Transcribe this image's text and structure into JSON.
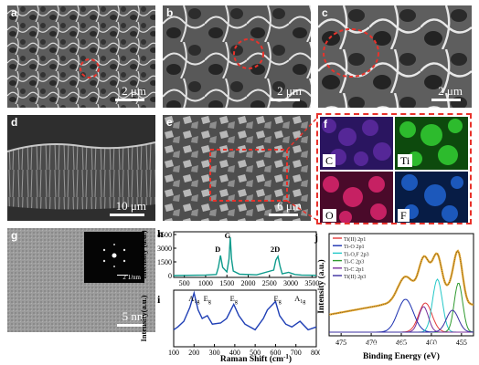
{
  "panels": {
    "a": {
      "letter": "a",
      "scale": "2 μm"
    },
    "b": {
      "letter": "b",
      "scale": "2 μm"
    },
    "c": {
      "letter": "c",
      "scale": "2 μm"
    },
    "d": {
      "letter": "d",
      "scale": "10 μm"
    },
    "e": {
      "letter": "e",
      "scale": "6 μm"
    },
    "f": {
      "letter": "f",
      "maps": [
        {
          "label": "C",
          "color": "#5a2a9e"
        },
        {
          "label": "Ti",
          "color": "#2fc22f"
        },
        {
          "label": "O",
          "color": "#d4246a"
        },
        {
          "label": "F",
          "color": "#1f5fc8"
        }
      ]
    },
    "g": {
      "letter": "g",
      "scale": "5 nm",
      "fft_scale": "2 1/nm"
    },
    "h": {
      "letter": "h"
    },
    "i": {
      "letter": "i"
    },
    "j": {
      "letter": "j"
    }
  },
  "colors": {
    "highlight": "#e8322b",
    "raman": "#0e9b8c",
    "raman_i": "#1f3fb5"
  },
  "chart_data": [
    {
      "type": "line",
      "panel": "h",
      "ylabel": "Intensity (a.u.)",
      "xlim": [
        250,
        3600
      ],
      "ylim": [
        -200,
        4800
      ],
      "xticks": [
        500,
        1000,
        1500,
        2000,
        2500,
        3000,
        3500
      ],
      "yticks": [
        0,
        1500,
        3000,
        4500
      ],
      "annotations": [
        {
          "text": "D",
          "x": 1350
        },
        {
          "text": "G",
          "x": 1580
        },
        {
          "text": "2D",
          "x": 2700
        }
      ],
      "series": [
        {
          "x": [
            250,
            600,
            1000,
            1250,
            1300,
            1350,
            1400,
            1500,
            1550,
            1580,
            1610,
            1650,
            1800,
            2200,
            2600,
            2650,
            2700,
            2750,
            2800,
            2950,
            3100,
            3250,
            3600
          ],
          "values": [
            0,
            30,
            60,
            120,
            900,
            2200,
            900,
            400,
            1800,
            4200,
            1800,
            500,
            150,
            80,
            600,
            1700,
            2100,
            1000,
            200,
            350,
            120,
            60,
            30
          ]
        }
      ]
    },
    {
      "type": "line",
      "panel": "i",
      "xlabel": "Raman Shift (cm",
      "ylabel": "Intensity(a.u.)",
      "xlim": [
        100,
        800
      ],
      "xticks": [
        100,
        200,
        300,
        400,
        500,
        600,
        700,
        800
      ],
      "annotations": [
        {
          "text": "A",
          "sub": "1g",
          "x": 200
        },
        {
          "text": "E",
          "sub": "g",
          "x": 265
        },
        {
          "text": "E",
          "sub": "g",
          "x": 395
        },
        {
          "text": "E",
          "sub": "g",
          "x": 610
        },
        {
          "text": "A",
          "sub": "1g",
          "x": 720
        }
      ],
      "series": [
        {
          "x": [
            100,
            120,
            150,
            180,
            200,
            220,
            240,
            265,
            290,
            330,
            360,
            395,
            420,
            450,
            500,
            540,
            560,
            600,
            620,
            650,
            680,
            720,
            760,
            800
          ],
          "values": [
            0.3,
            0.35,
            0.45,
            0.7,
            0.95,
            0.65,
            0.5,
            0.55,
            0.4,
            0.42,
            0.5,
            0.75,
            0.55,
            0.4,
            0.3,
            0.5,
            0.65,
            0.8,
            0.55,
            0.4,
            0.35,
            0.45,
            0.3,
            0.35
          ]
        }
      ]
    },
    {
      "type": "line",
      "panel": "j",
      "ylabel": "Intensity (a.u.)",
      "xticks": [
        475,
        470,
        465,
        460,
        455
      ],
      "legend": [
        "Ti(II) 2p1",
        "Ti-O 2p1",
        "Ti-O,F 2p3",
        "Ti-C 2p3",
        "Ti-C 2p1",
        "Ti(II) 2p3"
      ],
      "legend_colors": [
        "#e23b3b",
        "#1a2fb0",
        "#21c7c7",
        "#2f9a2f",
        "#7a2f9a",
        "#3b2fa0"
      ]
    }
  ],
  "axes": {
    "raman_shift_unit": ")",
    "j_xlabel": "Binding Energy (eV)"
  }
}
